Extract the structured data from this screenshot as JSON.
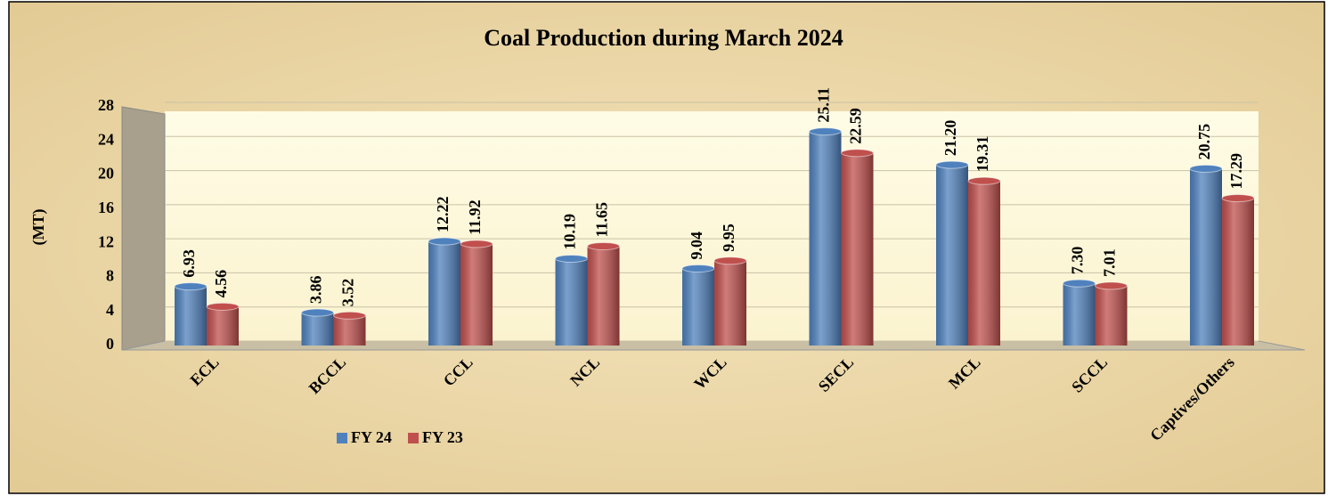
{
  "chart_data": {
    "type": "bar",
    "title": "Coal Production during March 2024",
    "y_label": "(MT)",
    "categories": [
      "ECL",
      "BCCL",
      "CCL",
      "NCL",
      "WCL",
      "SECL",
      "MCL",
      "SCCL",
      "Captives/Others"
    ],
    "series": [
      {
        "name": "FY 24",
        "color": "#4f81bd",
        "values": [
          6.93,
          3.86,
          12.22,
          10.19,
          9.04,
          25.11,
          21.2,
          7.3,
          20.75
        ],
        "value_labels": [
          "6.93",
          "3.86",
          "12.22",
          "10.19",
          "9.04",
          "25.11",
          "21.20",
          "7.30",
          "20.75"
        ]
      },
      {
        "name": "FY 23",
        "color": "#c0504d",
        "values": [
          4.56,
          3.52,
          11.92,
          11.65,
          9.95,
          22.59,
          19.31,
          7.01,
          17.29
        ],
        "value_labels": [
          "4.56",
          "3.52",
          "11.92",
          "11.65",
          "9.95",
          "22.59",
          "19.31",
          "7.01",
          "17.29"
        ]
      }
    ],
    "ylim": [
      0,
      28
    ],
    "yticks": [
      0,
      4,
      8,
      12,
      16,
      20,
      24,
      28
    ],
    "grid": true,
    "legend": "bottom"
  }
}
